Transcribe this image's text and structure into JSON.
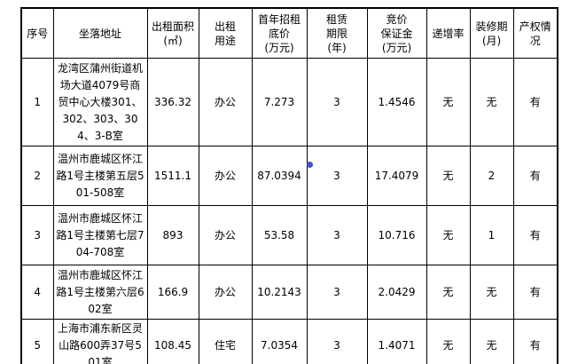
{
  "table": {
    "columns": [
      {
        "key": "index",
        "label": "序号"
      },
      {
        "key": "address",
        "label": "坐落地址"
      },
      {
        "key": "area",
        "label": "出租面积\n(㎡)"
      },
      {
        "key": "usage",
        "label": "出租\n用途"
      },
      {
        "key": "base_price",
        "label": "首年招租\n底价\n(万元)"
      },
      {
        "key": "term",
        "label": "租赁\n期限\n(年)"
      },
      {
        "key": "deposit",
        "label": "竞价\n保证金\n(万元)"
      },
      {
        "key": "increment",
        "label": "递增率"
      },
      {
        "key": "renovation",
        "label": "装修期\n(月)"
      },
      {
        "key": "ownership",
        "label": "产权情况"
      }
    ],
    "rows": [
      {
        "index": "1",
        "address": "龙湾区蒲州街道机场大道4079号商贸中心大楼301、302、303、304、3-B室",
        "area": "336.32",
        "usage": "办公",
        "base_price": "7.273",
        "term": "3",
        "deposit": "1.4546",
        "increment": "无",
        "renovation": "无",
        "ownership": "有"
      },
      {
        "index": "2",
        "address": "温州市鹿城区怀江路1号主楼第五层501-508室",
        "area": "1511.1",
        "usage": "办公",
        "base_price": "87.0394",
        "term": "3",
        "deposit": "17.4079",
        "increment": "无",
        "renovation": "2",
        "ownership": "有"
      },
      {
        "index": "3",
        "address": "温州市鹿城区怀江路1号主楼第七层704-708室",
        "area": "893",
        "usage": "办公",
        "base_price": "53.58",
        "term": "3",
        "deposit": "10.716",
        "increment": "无",
        "renovation": "1",
        "ownership": "有"
      },
      {
        "index": "4",
        "address": "温州市鹿城区怀江路1号主楼第六层602室",
        "area": "166.9",
        "usage": "办公",
        "base_price": "10.2143",
        "term": "3",
        "deposit": "2.0429",
        "increment": "无",
        "renovation": "无",
        "ownership": "有"
      },
      {
        "index": "5",
        "address": "上海市浦东新区灵山路600弄37号501室",
        "area": "108.45",
        "usage": "住宅",
        "base_price": "7.0354",
        "term": "3",
        "deposit": "1.4071",
        "increment": "无",
        "renovation": "无",
        "ownership": "有"
      }
    ]
  },
  "marker": {
    "name": "blue-dot",
    "color": "#4350cb"
  }
}
